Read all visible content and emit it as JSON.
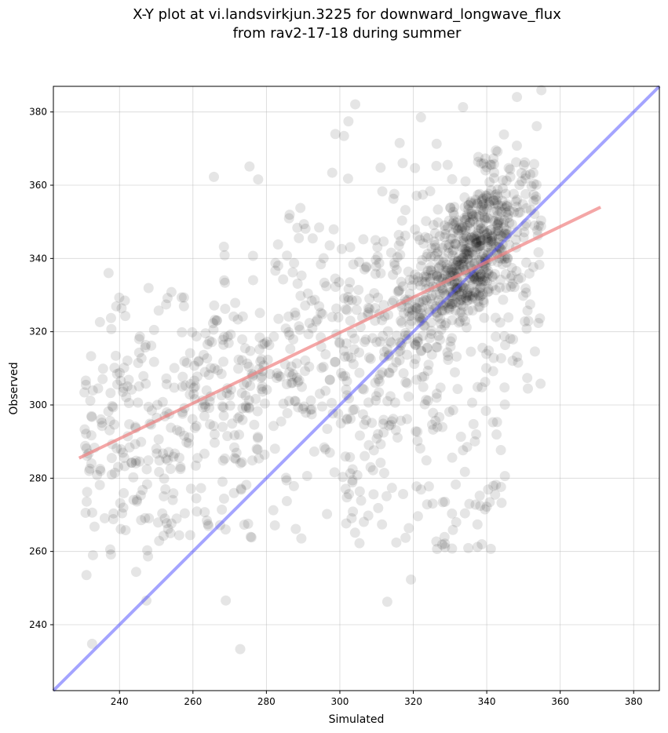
{
  "chart_data": {
    "type": "scatter",
    "title_line1": "X-Y plot at vi.landsvirkjun.3225 for downward_longwave_flux",
    "title_line2": "from rav2-17-18 during summer",
    "xlabel": "Simulated",
    "ylabel": "Observed",
    "xlim": [
      222,
      387
    ],
    "ylim": [
      222,
      387
    ],
    "xticks": [
      240,
      260,
      280,
      300,
      320,
      340,
      360,
      380
    ],
    "yticks": [
      240,
      260,
      280,
      300,
      320,
      340,
      360,
      380
    ],
    "grid": true,
    "series": [
      {
        "kind": "points",
        "color": "#000000",
        "opacity": 0.1,
        "points": []
      }
    ],
    "identity_line": {
      "color": "#4a4aff",
      "from": [
        222,
        222
      ],
      "to": [
        387,
        387
      ]
    },
    "regression_line": {
      "color": "#f08080",
      "from": [
        229,
        285.5
      ],
      "to": [
        371,
        354
      ]
    }
  }
}
